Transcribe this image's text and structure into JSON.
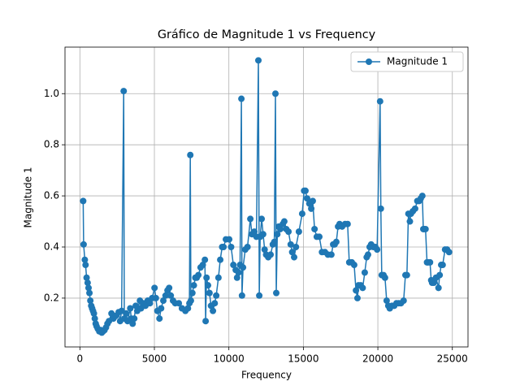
{
  "chart_data": {
    "type": "line",
    "title": "Gráfico de Magnitude 1 vs Frequency",
    "x_label": "Frequency",
    "y_label": "Magnitude 1",
    "x": [
      220,
      250,
      330,
      380,
      450,
      520,
      580,
      640,
      700,
      760,
      820,
      880,
      940,
      1000,
      1060,
      1120,
      1200,
      1300,
      1400,
      1470,
      1550,
      1650,
      1750,
      1850,
      1950,
      2120,
      2250,
      2400,
      2600,
      2700,
      2800,
      2940,
      2980,
      3100,
      3200,
      3380,
      3450,
      3540,
      3650,
      3750,
      3850,
      4030,
      4100,
      4250,
      4400,
      4550,
      4700,
      4850,
      5010,
      5100,
      5200,
      5340,
      5450,
      5600,
      5750,
      5880,
      5990,
      6100,
      6250,
      6400,
      6640,
      6850,
      7080,
      7250,
      7350,
      7410,
      7450,
      7550,
      7650,
      7750,
      7840,
      7950,
      8100,
      8250,
      8390,
      8440,
      8500,
      8600,
      8700,
      8800,
      8930,
      9050,
      9150,
      9300,
      9420,
      9550,
      9640,
      9800,
      10020,
      10150,
      10300,
      10460,
      10550,
      10650,
      10750,
      10840,
      10880,
      10950,
      11100,
      11250,
      11440,
      11550,
      11710,
      11850,
      11980,
      12040,
      12100,
      12200,
      12300,
      12400,
      12500,
      12640,
      12800,
      12950,
      13050,
      13125,
      13180,
      13250,
      13350,
      13450,
      13620,
      13720,
      13850,
      14000,
      14150,
      14250,
      14380,
      14500,
      14700,
      14920,
      15050,
      15140,
      15250,
      15400,
      15530,
      15630,
      15750,
      15900,
      16070,
      16250,
      16450,
      16650,
      16880,
      17000,
      17100,
      17210,
      17330,
      17430,
      17600,
      17800,
      17970,
      18080,
      18250,
      18410,
      18530,
      18630,
      18700,
      18850,
      18980,
      19120,
      19250,
      19340,
      19450,
      19550,
      19700,
      19830,
      19950,
      20150,
      20200,
      20260,
      20380,
      20480,
      20590,
      20700,
      20800,
      20950,
      21100,
      21250,
      21400,
      21550,
      21730,
      21850,
      21950,
      22050,
      22150,
      22220,
      22350,
      22500,
      22650,
      22770,
      22880,
      22985,
      23050,
      23090,
      23200,
      23300,
      23370,
      23500,
      23580,
      23640,
      23750,
      23900,
      24070,
      24150,
      24250,
      24350,
      24510,
      24650,
      24780
    ],
    "series": [
      {
        "name": "Magnitude 1",
        "color": "#1f77b4",
        "values": [
          0.58,
          0.41,
          0.35,
          0.33,
          0.28,
          0.26,
          0.24,
          0.22,
          0.19,
          0.17,
          0.16,
          0.15,
          0.14,
          0.12,
          0.1,
          0.09,
          0.08,
          0.07,
          0.075,
          0.065,
          0.07,
          0.075,
          0.085,
          0.1,
          0.11,
          0.14,
          0.12,
          0.13,
          0.145,
          0.11,
          0.15,
          1.01,
          0.12,
          0.14,
          0.11,
          0.16,
          0.12,
          0.1,
          0.12,
          0.17,
          0.15,
          0.19,
          0.16,
          0.18,
          0.17,
          0.19,
          0.18,
          0.2,
          0.24,
          0.2,
          0.15,
          0.12,
          0.16,
          0.19,
          0.21,
          0.23,
          0.24,
          0.21,
          0.19,
          0.18,
          0.18,
          0.16,
          0.15,
          0.16,
          0.18,
          0.76,
          0.19,
          0.22,
          0.25,
          0.28,
          0.28,
          0.29,
          0.32,
          0.33,
          0.35,
          0.11,
          0.28,
          0.25,
          0.22,
          0.17,
          0.15,
          0.18,
          0.21,
          0.28,
          0.35,
          0.4,
          0.4,
          0.43,
          0.43,
          0.4,
          0.33,
          0.31,
          0.28,
          0.3,
          0.33,
          0.98,
          0.21,
          0.32,
          0.39,
          0.4,
          0.51,
          0.45,
          0.46,
          0.44,
          1.13,
          0.21,
          0.44,
          0.51,
          0.45,
          0.39,
          0.37,
          0.36,
          0.37,
          0.41,
          0.42,
          1.0,
          0.22,
          0.45,
          0.48,
          0.47,
          0.49,
          0.5,
          0.47,
          0.46,
          0.41,
          0.38,
          0.36,
          0.4,
          0.46,
          0.53,
          0.62,
          0.62,
          0.59,
          0.57,
          0.55,
          0.58,
          0.47,
          0.44,
          0.44,
          0.38,
          0.38,
          0.37,
          0.37,
          0.41,
          0.41,
          0.42,
          0.48,
          0.49,
          0.48,
          0.49,
          0.49,
          0.34,
          0.34,
          0.33,
          0.23,
          0.2,
          0.25,
          0.25,
          0.24,
          0.3,
          0.36,
          0.37,
          0.4,
          0.41,
          0.4,
          0.4,
          0.39,
          0.97,
          0.55,
          0.29,
          0.29,
          0.28,
          0.19,
          0.17,
          0.16,
          0.17,
          0.17,
          0.18,
          0.18,
          0.18,
          0.19,
          0.29,
          0.29,
          0.53,
          0.5,
          0.53,
          0.54,
          0.55,
          0.58,
          0.58,
          0.59,
          0.6,
          0.47,
          0.47,
          0.47,
          0.34,
          0.34,
          0.34,
          0.27,
          0.26,
          0.26,
          0.28,
          0.24,
          0.29,
          0.33,
          0.33,
          0.39,
          0.39,
          0.38
        ]
      }
    ],
    "xlim": [
      -1000,
      26050
    ],
    "ylim": [
      0.009,
      1.182
    ],
    "xticks": [
      0,
      5000,
      10000,
      15000,
      20000,
      25000
    ],
    "yticks": [
      0.2,
      0.4,
      0.6,
      0.8,
      {
        "value": 1.0,
        "label": "1.0"
      }
    ],
    "grid": true,
    "legend": "upper right"
  }
}
